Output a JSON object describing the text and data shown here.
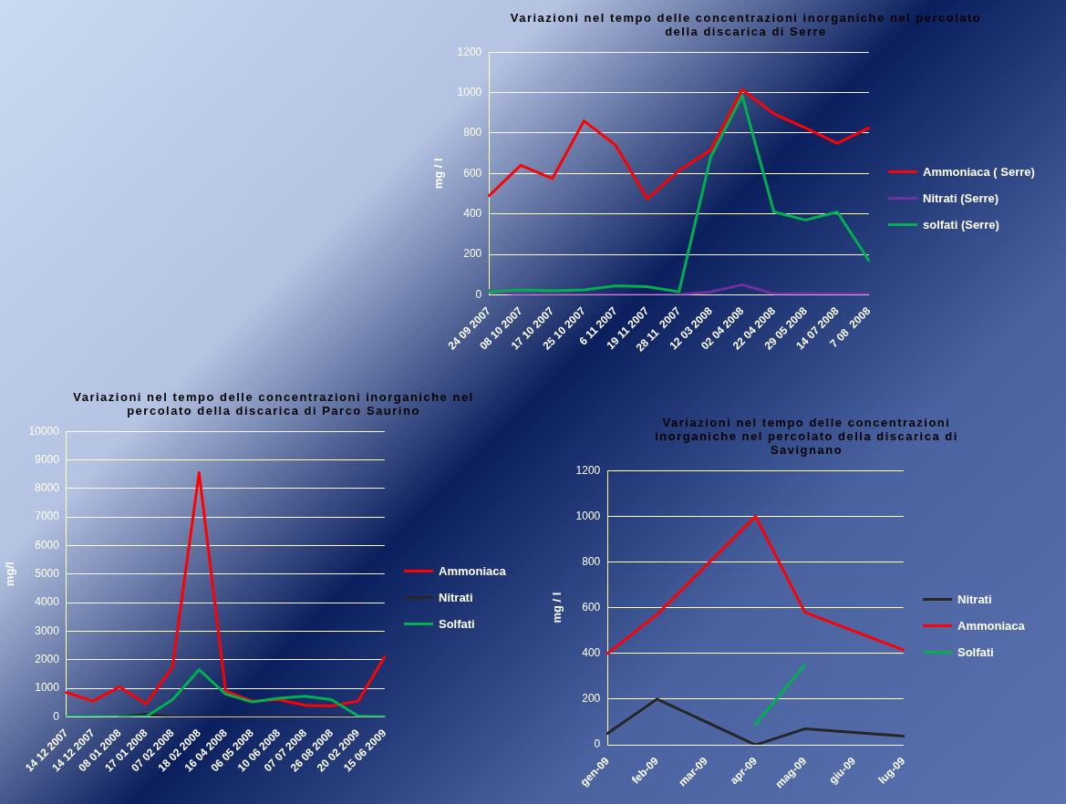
{
  "chart_data": [
    {
      "type": "line",
      "title": "Variazioni nel tempo delle concentrazioni  inorganiche nel percolato della discarica di Serre",
      "ylabel": "mg / l",
      "categories": [
        "24 09 2007",
        "08 10 2007",
        "17 10 2007",
        "25 10 2007",
        "6 11 2007",
        "19 11 2007",
        "28 11  2007",
        "12 03 2008",
        "02 04 2008",
        "22 04 2008",
        "29 05 2008",
        "14 07 2008",
        "7 08  2008"
      ],
      "series": [
        {
          "name": "Ammoniaca ( Serre)",
          "color": "#ff0000",
          "values": [
            490,
            640,
            575,
            860,
            740,
            475,
            615,
            715,
            1015,
            895,
            825,
            750,
            825
          ]
        },
        {
          "name": "Nitrati (Serre)",
          "color": "#7030a0",
          "values": [
            20,
            0,
            0,
            0,
            0,
            0,
            0,
            15,
            50,
            5,
            5,
            5,
            5
          ]
        },
        {
          "name": "solfati (Serre)",
          "color": "#00b050",
          "values": [
            15,
            25,
            20,
            25,
            45,
            40,
            15,
            680,
            985,
            410,
            370,
            410,
            170
          ]
        }
      ],
      "ylim": [
        0,
        1200
      ],
      "yticks": [
        0,
        200,
        400,
        600,
        800,
        1000,
        1200
      ],
      "grid": "y",
      "legend": "right",
      "marker": "none",
      "line_style": "solid"
    },
    {
      "type": "line",
      "title": "Variazioni  nel tempo delle concentrazioni inorganiche nel percolato  della  discarica  di  Parco Saurino",
      "ylabel": "mg/l",
      "categories": [
        "14 12 2007",
        "14 12 2007",
        "08 01 2008",
        "17 01 2008",
        "07 02 2008",
        "18 02 2008",
        "16 04 2008",
        "06 05 2008",
        "10 06 2008",
        "07 07 2008",
        "26 08 2008",
        "20 02 2009",
        "15 06 2009"
      ],
      "series": [
        {
          "name": "Ammoniaca",
          "color": "#ff0000",
          "values": [
            850,
            550,
            1050,
            450,
            1750,
            8550,
            900,
            550,
            600,
            400,
            380,
            550,
            2100
          ]
        },
        {
          "name": "Nitrati",
          "color": "#262626",
          "values": [
            null,
            null,
            0,
            80,
            0,
            0,
            0,
            0,
            0,
            0,
            0,
            0,
            0
          ]
        },
        {
          "name": "Solfati",
          "color": "#00b050",
          "values": [
            0,
            0,
            0,
            0,
            600,
            1650,
            800,
            520,
            650,
            720,
            600,
            30,
            0
          ]
        }
      ],
      "ylim": [
        0,
        10000
      ],
      "yticks": [
        0,
        1000,
        2000,
        3000,
        4000,
        5000,
        6000,
        7000,
        8000,
        9000,
        10000
      ],
      "grid": "y",
      "legend": "right",
      "marker": "none",
      "line_style": "solid"
    },
    {
      "type": "line",
      "title": "Variazioni nel tempo delle concentrazioni inorganiche  nel percolato della discarica di Savignano",
      "ylabel": "mg / l",
      "categories": [
        "gen-09",
        "feb-09",
        "mar-09",
        "apr-09",
        "mag-09",
        "giu-09",
        "lug-09"
      ],
      "series": [
        {
          "name": "Nitrati",
          "color": "#262626",
          "values": [
            50,
            200,
            null,
            0,
            70,
            null,
            38
          ]
        },
        {
          "name": "Ammoniaca",
          "color": "#ff0000",
          "values": [
            400,
            570,
            null,
            1000,
            580,
            null,
            415
          ]
        },
        {
          "name": "Solfati",
          "color": "#00b050",
          "values": [
            null,
            null,
            null,
            90,
            350,
            null,
            null
          ]
        }
      ],
      "ylim": [
        0,
        1200
      ],
      "yticks": [
        0,
        200,
        400,
        600,
        800,
        1000,
        1200
      ],
      "grid": "y",
      "legend": "right",
      "marker": "none",
      "line_style": "solid"
    }
  ]
}
